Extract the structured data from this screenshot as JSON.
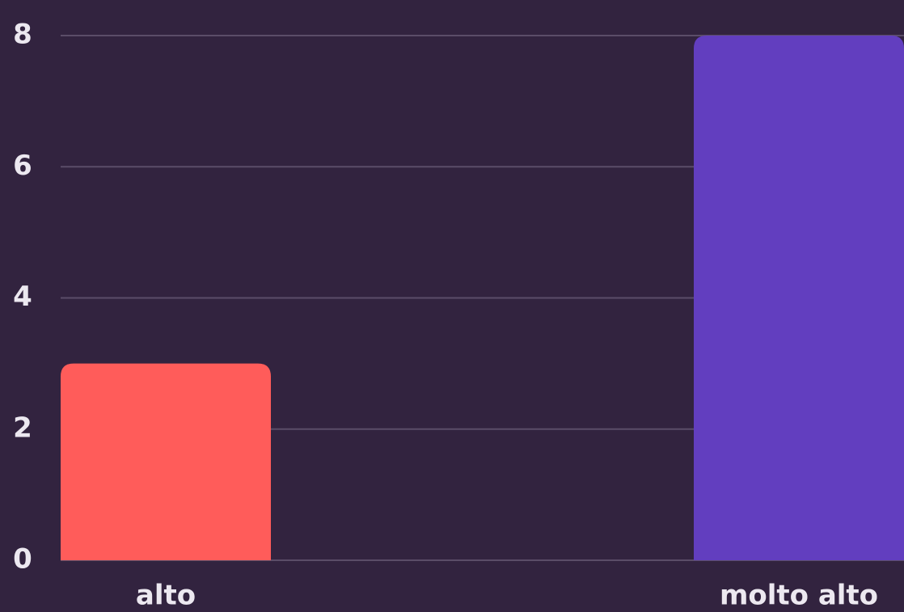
{
  "chart_data": {
    "type": "bar",
    "categories": [
      "alto",
      "molto alto"
    ],
    "values": [
      3,
      8
    ],
    "colors": [
      "#ff5c5a",
      "#623ebf"
    ],
    "ylim": [
      0,
      8
    ],
    "yticks": [
      0,
      2,
      4,
      6,
      8
    ],
    "grid": true
  }
}
